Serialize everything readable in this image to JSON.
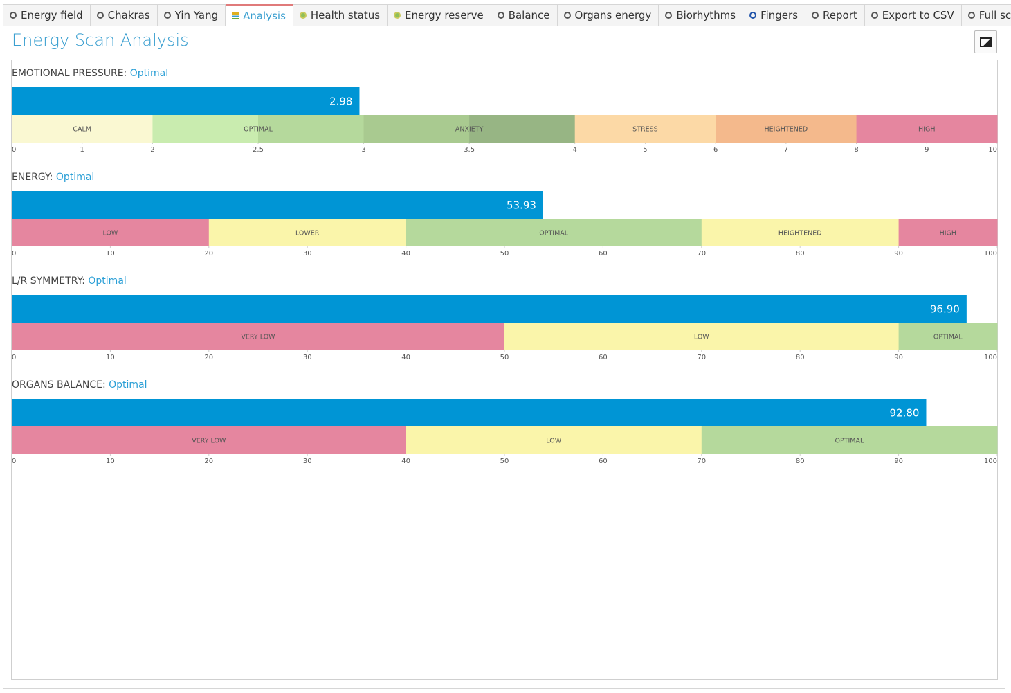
{
  "tabs": [
    {
      "label": "Energy field"
    },
    {
      "label": "Chakras"
    },
    {
      "label": "Yin Yang"
    },
    {
      "label": "Analysis",
      "active": true
    },
    {
      "label": "Health status"
    },
    {
      "label": "Energy reserve"
    },
    {
      "label": "Balance"
    },
    {
      "label": "Organs energy"
    },
    {
      "label": "Biorhythms"
    },
    {
      "label": "Fingers"
    },
    {
      "label": "Report"
    },
    {
      "label": "Export to CSV"
    },
    {
      "label": "Full screen"
    }
  ],
  "title": "Energy Scan Analysis",
  "charts": [
    {
      "type": "bar",
      "label": "EMOTIONAL PRESSURE:",
      "status": "Optimal",
      "value": 2.98,
      "color": "#0095d5",
      "xlim": [
        0,
        10
      ],
      "xticks": [
        0,
        1,
        2,
        2.5,
        3,
        3.5,
        4,
        5,
        6,
        7,
        8,
        9,
        10
      ],
      "zoom": {
        "range": [
          2,
          4
        ],
        "factor": 3
      },
      "zones": [
        {
          "name": "CALM",
          "from": 0,
          "to": 2,
          "colors": [
            "#faf8d2"
          ]
        },
        {
          "name": "OPTIMAL",
          "from": 2,
          "to": 3,
          "colors": [
            "#c9ecaf",
            "#b5d99c"
          ]
        },
        {
          "name": "ANXIETY",
          "from": 3,
          "to": 4,
          "colors": [
            "#a9ca90",
            "#97b584"
          ]
        },
        {
          "name": "STRESS",
          "from": 4,
          "to": 6,
          "colors": [
            "#fcd9a6"
          ]
        },
        {
          "name": "HEIGHTENED",
          "from": 6,
          "to": 8,
          "colors": [
            "#f4b98c"
          ]
        },
        {
          "name": "HIGH",
          "from": 8,
          "to": 10,
          "colors": [
            "#e5869f"
          ]
        }
      ]
    },
    {
      "type": "bar",
      "label": "ENERGY:",
      "status": "Optimal",
      "value": 53.93,
      "color": "#0095d5",
      "xlim": [
        0,
        100
      ],
      "xticks": [
        0,
        10,
        20,
        30,
        40,
        50,
        60,
        70,
        80,
        90,
        100
      ],
      "zones": [
        {
          "name": "LOW",
          "from": 0,
          "to": 20,
          "colors": [
            "#e5869f"
          ]
        },
        {
          "name": "LOWER",
          "from": 20,
          "to": 40,
          "colors": [
            "#faf5aa"
          ]
        },
        {
          "name": "OPTIMAL",
          "from": 40,
          "to": 70,
          "colors": [
            "#b5d99c"
          ]
        },
        {
          "name": "HEIGHTENED",
          "from": 70,
          "to": 90,
          "colors": [
            "#faf5aa"
          ]
        },
        {
          "name": "HIGH",
          "from": 90,
          "to": 100,
          "colors": [
            "#e5869f"
          ]
        }
      ]
    },
    {
      "type": "bar",
      "label": "L/R SYMMETRY:",
      "status": "Optimal",
      "value": 96.9,
      "value_label": "96.90",
      "color": "#0095d5",
      "xlim": [
        0,
        100
      ],
      "xticks": [
        0,
        10,
        20,
        30,
        40,
        50,
        60,
        70,
        80,
        90,
        100
      ],
      "zones": [
        {
          "name": "VERY LOW",
          "from": 0,
          "to": 50,
          "colors": [
            "#e5869f"
          ]
        },
        {
          "name": "LOW",
          "from": 50,
          "to": 90,
          "colors": [
            "#faf5aa"
          ]
        },
        {
          "name": "OPTIMAL",
          "from": 90,
          "to": 100,
          "colors": [
            "#b5d99c"
          ]
        }
      ]
    },
    {
      "type": "bar",
      "label": "ORGANS BALANCE:",
      "status": "Optimal",
      "value": 92.8,
      "value_label": "92.80",
      "color": "#0095d5",
      "xlim": [
        0,
        100
      ],
      "xticks": [
        0,
        10,
        20,
        30,
        40,
        50,
        60,
        70,
        80,
        90,
        100
      ],
      "zones": [
        {
          "name": "VERY LOW",
          "from": 0,
          "to": 40,
          "colors": [
            "#e5869f"
          ]
        },
        {
          "name": "LOW",
          "from": 40,
          "to": 70,
          "colors": [
            "#faf5aa"
          ]
        },
        {
          "name": "OPTIMAL",
          "from": 70,
          "to": 100,
          "colors": [
            "#b5d99c"
          ]
        }
      ]
    }
  ]
}
